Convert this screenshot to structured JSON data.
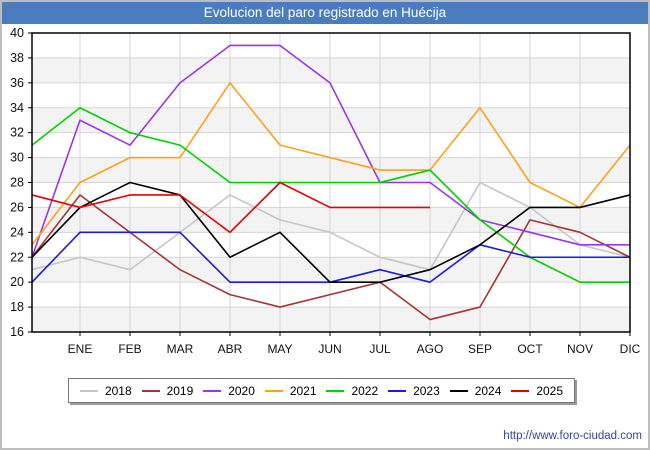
{
  "title": "Evolucion del paro registrado en Huécija",
  "footer": {
    "url": "http://www.foro-ciudad.com"
  },
  "colors": {
    "titlebar": "#4a7dbe",
    "title_text": "#ffffff",
    "plot_border": "#000000",
    "grid": "#d6d6d6",
    "band": "#f3f3f3",
    "tick_text": "#111111",
    "footer_text": "#3344aa"
  },
  "chart_data": {
    "type": "line",
    "title": "Evolucion del paro registrado en Huécija",
    "xlabel": "",
    "ylabel": "",
    "x_categories": [
      "ENE",
      "FEB",
      "MAR",
      "ABR",
      "MAY",
      "JUN",
      "JUL",
      "AGO",
      "SEP",
      "OCT",
      "NOV",
      "DIC"
    ],
    "ylim": [
      16,
      40
    ],
    "y_tick_step": 2,
    "grid": true,
    "legend_position": "bottom",
    "start_note": "start = value drawn at the plot left edge (previous December)",
    "series": [
      {
        "name": "2018",
        "color": "#c6c6c6",
        "start": 21,
        "values": [
          22,
          21,
          24,
          27,
          25,
          24,
          22,
          21,
          28,
          26,
          23,
          22
        ]
      },
      {
        "name": "2019",
        "color": "#a83434",
        "start": 22,
        "values": [
          27,
          24,
          21,
          19,
          18,
          19,
          20,
          17,
          18,
          25,
          24,
          22
        ]
      },
      {
        "name": "2020",
        "color": "#9a36ea",
        "start": 22,
        "values": [
          33,
          31,
          36,
          39,
          39,
          36,
          28,
          28,
          25,
          24,
          23,
          23
        ]
      },
      {
        "name": "2021",
        "color": "#ffa01e",
        "start": 23,
        "values": [
          28,
          30,
          30,
          36,
          31,
          30,
          29,
          29,
          34,
          28,
          26,
          31
        ]
      },
      {
        "name": "2022",
        "color": "#00d200",
        "start": 31,
        "values": [
          34,
          32,
          31,
          28,
          28,
          28,
          28,
          29,
          25,
          22,
          20,
          20
        ]
      },
      {
        "name": "2023",
        "color": "#1a1ae0",
        "start": 20,
        "values": [
          24,
          24,
          24,
          20,
          20,
          20,
          21,
          20,
          23,
          22,
          22,
          22
        ]
      },
      {
        "name": "2024",
        "color": "#000000",
        "start": 22,
        "values": [
          26,
          28,
          27,
          22,
          24,
          20,
          20,
          21,
          23,
          26,
          26,
          27
        ]
      },
      {
        "name": "2025",
        "color": "#e60000",
        "start": 27,
        "values": [
          26,
          27,
          27,
          24,
          28,
          26,
          26,
          26
        ]
      }
    ]
  }
}
